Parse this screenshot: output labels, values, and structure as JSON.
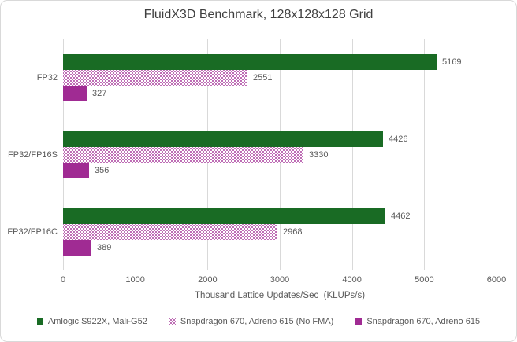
{
  "chart_data": {
    "type": "bar",
    "orientation": "horizontal",
    "title": "FluidX3D Benchmark, 128x128x128 Grid",
    "xlabel": "Thousand Lattice Updates/Sec  (KLUPs/s)",
    "categories": [
      "FP32",
      "FP32/FP16S",
      "FP32/FP16C"
    ],
    "series": [
      {
        "name": "Amlogic S922X, Mali-G52",
        "fill": "solid",
        "color": "#196B24",
        "values": [
          5169,
          4426,
          4462
        ]
      },
      {
        "name": "Snapdragon 670, Adreno 615 (No FMA)",
        "fill": "dot-pattern",
        "color": "#A02B93",
        "values": [
          2551,
          3330,
          2968
        ]
      },
      {
        "name": "Snapdragon 670, Adreno 615",
        "fill": "solid",
        "color": "#A02B93",
        "values": [
          327,
          356,
          389
        ]
      }
    ],
    "xlim": [
      0,
      6000
    ],
    "xticks": [
      0,
      1000,
      2000,
      3000,
      4000,
      5000,
      6000
    ],
    "grid": true,
    "legend_position": "bottom",
    "colors": {
      "green_accent": "#196B24",
      "purple_accent": "#A02B93",
      "gridline": "#D9D9D9",
      "frame_border": "#D9D9D9",
      "axis_text": "#595959",
      "title_text": "#404040",
      "background": "#FFFFFF"
    }
  }
}
